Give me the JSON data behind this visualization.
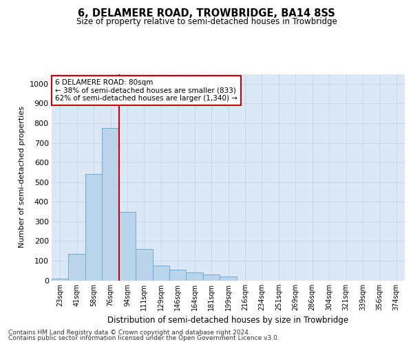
{
  "title1": "6, DELAMERE ROAD, TROWBRIDGE, BA14 8SS",
  "title2": "Size of property relative to semi-detached houses in Trowbridge",
  "xlabel": "Distribution of semi-detached houses by size in Trowbridge",
  "ylabel": "Number of semi-detached properties",
  "bar_labels": [
    "23sqm",
    "41sqm",
    "58sqm",
    "76sqm",
    "94sqm",
    "111sqm",
    "129sqm",
    "146sqm",
    "164sqm",
    "181sqm",
    "199sqm",
    "216sqm",
    "234sqm",
    "251sqm",
    "269sqm",
    "286sqm",
    "304sqm",
    "321sqm",
    "339sqm",
    "356sqm",
    "374sqm"
  ],
  "bar_values": [
    10,
    135,
    540,
    775,
    350,
    160,
    75,
    55,
    40,
    30,
    20,
    0,
    0,
    0,
    0,
    0,
    0,
    0,
    0,
    0,
    0
  ],
  "property_bin_index": 3,
  "bar_color": "#bad4eb",
  "bar_edge_color": "#6aadd5",
  "annotation_text_line1": "6 DELAMERE ROAD: 80sqm",
  "annotation_text_line2": "← 38% of semi-detached houses are smaller (833)",
  "annotation_text_line3": "62% of semi-detached houses are larger (1,340) →",
  "annotation_box_color": "#ffffff",
  "annotation_box_edge": "#cc0000",
  "annotation_line_color": "#cc0000",
  "grid_color": "#c8d8eb",
  "bg_color": "#dce8f5",
  "ylim": [
    0,
    1050
  ],
  "yticks": [
    0,
    100,
    200,
    300,
    400,
    500,
    600,
    700,
    800,
    900,
    1000
  ],
  "footer1": "Contains HM Land Registry data © Crown copyright and database right 2024.",
  "footer2": "Contains public sector information licensed under the Open Government Licence v3.0."
}
